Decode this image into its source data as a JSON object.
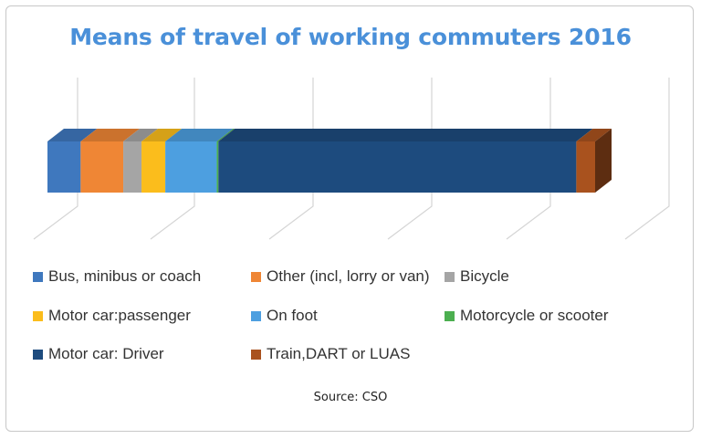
{
  "chart_data": {
    "type": "bar",
    "orientation": "horizontal",
    "stacked": true,
    "style": "3d",
    "title": "Means of travel of working commuters 2016",
    "source": "Source: CSO",
    "xlabel": "",
    "ylabel": "",
    "grid": true,
    "legend_position": "bottom",
    "series": [
      {
        "name": "Bus, minibus or coach",
        "value": 6.0,
        "color": "#3f78be"
      },
      {
        "name": "Other (incl, lorry or van)",
        "value": 7.7,
        "color": "#ef8635"
      },
      {
        "name": "Bicycle",
        "value": 3.3,
        "color": "#a5a5a5"
      },
      {
        "name": "Motor car:passenger",
        "value": 4.3,
        "color": "#fbbd1c"
      },
      {
        "name": "On foot",
        "value": 9.3,
        "color": "#4d9fe0"
      },
      {
        "name": "Motorcycle or scooter",
        "value": 0.3,
        "color": "#4caf50"
      },
      {
        "name": "Motor car: Driver",
        "value": 64.7,
        "color": "#1d4b7e"
      },
      {
        "name": "Train,DART or LUAS",
        "value": 3.4,
        "color": "#a9521e"
      }
    ],
    "legend_order": [
      "Bus, minibus or coach",
      "Other (incl, lorry or van)",
      "Bicycle",
      "Motor car:passenger",
      "On foot",
      "Motorcycle or scooter",
      "Motor car: Driver",
      "Train,DART or LUAS"
    ]
  }
}
